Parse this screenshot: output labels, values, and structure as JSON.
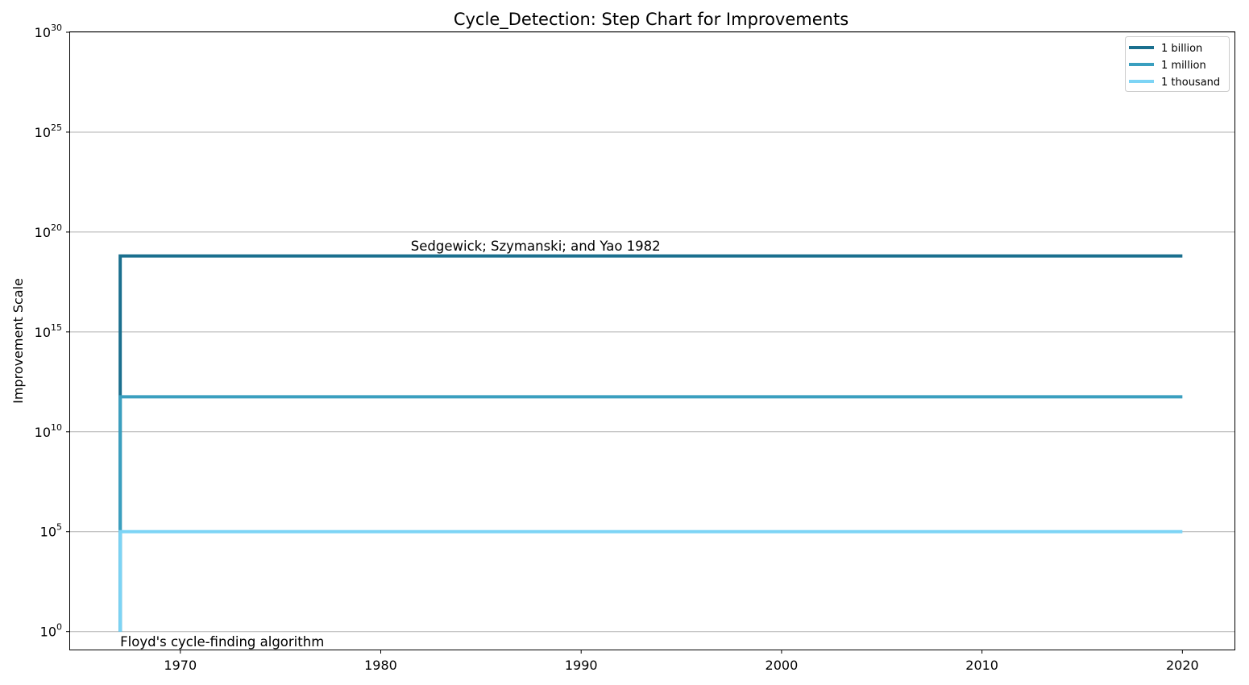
{
  "chart_data": {
    "type": "line",
    "title": "Cycle_Detection: Step Chart for Improvements",
    "xlabel": "",
    "ylabel": "Improvement Scale",
    "xlim": [
      1964.5,
      2022.6
    ],
    "ylim_exponent": [
      -0.9,
      30
    ],
    "x_ticks": [
      1970,
      1980,
      1990,
      2000,
      2010,
      2020
    ],
    "y_ticks": [
      {
        "base": "10",
        "exp": "0",
        "value": 0
      },
      {
        "base": "10",
        "exp": "5",
        "value": 5
      },
      {
        "base": "10",
        "exp": "10",
        "value": 10
      },
      {
        "base": "10",
        "exp": "15",
        "value": 15
      },
      {
        "base": "10",
        "exp": "20",
        "value": 20
      },
      {
        "base": "10",
        "exp": "25",
        "value": 25
      },
      {
        "base": "10",
        "exp": "30",
        "value": 30
      }
    ],
    "grid": "horizontal",
    "legend_position": "top-right",
    "series": [
      {
        "name": "1 billion",
        "color": "#1a6f8e",
        "points": [
          [
            1967,
            0
          ],
          [
            1967,
            18.8
          ],
          [
            2020,
            18.8
          ]
        ]
      },
      {
        "name": "1 million",
        "color": "#3a9fbf",
        "points": [
          [
            1967,
            0
          ],
          [
            1967,
            11.75
          ],
          [
            2020,
            11.75
          ]
        ]
      },
      {
        "name": "1 thousand",
        "color": "#7dd4f5",
        "points": [
          [
            1967,
            0
          ],
          [
            1967,
            5
          ],
          [
            2020,
            5
          ]
        ]
      }
    ],
    "annotations": [
      {
        "text": "Sedgewick; Szymanski; and Yao 1982",
        "x": 1981.5,
        "y": 19.3
      },
      {
        "text": "Floyd's cycle-finding algorithm",
        "x": 1967,
        "y": -0.5
      }
    ]
  }
}
